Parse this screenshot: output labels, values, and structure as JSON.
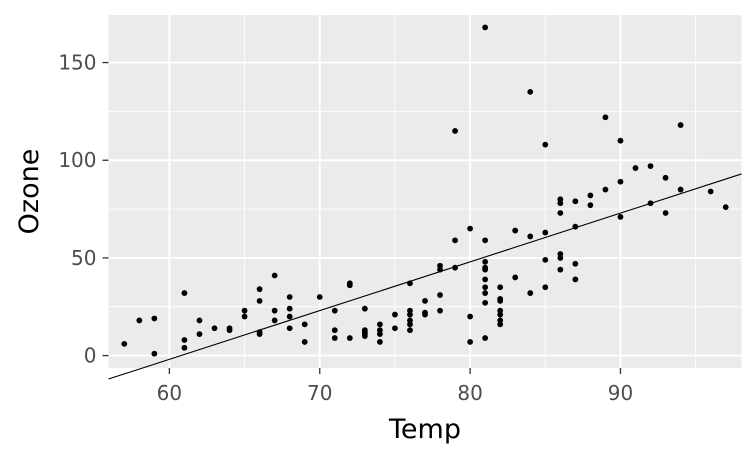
{
  "chart_data": {
    "type": "scatter",
    "title": "",
    "xlabel": "Temp",
    "ylabel": "Ozone",
    "xlim": [
      55.95,
      98.05
    ],
    "ylim": [
      -6.35,
      174.35
    ],
    "x_ticks": [
      60,
      70,
      80,
      90
    ],
    "y_ticks": [
      0,
      50,
      100,
      150
    ],
    "x_minor_ticks": [
      65,
      75,
      85,
      95
    ],
    "y_minor_ticks": [
      25,
      75,
      125
    ],
    "grid": true,
    "legend": "none",
    "colors": {
      "panel": "#ebebeb",
      "grid": "#ffffff",
      "point": "#000000",
      "line": "#000000",
      "tick": "#333333"
    },
    "points": [
      {
        "x": 57,
        "y": 6
      },
      {
        "x": 58,
        "y": 18
      },
      {
        "x": 59,
        "y": 19
      },
      {
        "x": 59,
        "y": 1
      },
      {
        "x": 61,
        "y": 32
      },
      {
        "x": 61,
        "y": 8
      },
      {
        "x": 61,
        "y": 4
      },
      {
        "x": 62,
        "y": 18
      },
      {
        "x": 62,
        "y": 11
      },
      {
        "x": 63,
        "y": 14
      },
      {
        "x": 64,
        "y": 14
      },
      {
        "x": 64,
        "y": 13
      },
      {
        "x": 65,
        "y": 23
      },
      {
        "x": 65,
        "y": 20
      },
      {
        "x": 66,
        "y": 34
      },
      {
        "x": 66,
        "y": 28
      },
      {
        "x": 66,
        "y": 12
      },
      {
        "x": 66,
        "y": 11
      },
      {
        "x": 67,
        "y": 41
      },
      {
        "x": 67,
        "y": 23
      },
      {
        "x": 67,
        "y": 18
      },
      {
        "x": 68,
        "y": 30
      },
      {
        "x": 68,
        "y": 24
      },
      {
        "x": 68,
        "y": 20
      },
      {
        "x": 68,
        "y": 14
      },
      {
        "x": 69,
        "y": 16
      },
      {
        "x": 69,
        "y": 7
      },
      {
        "x": 70,
        "y": 30
      },
      {
        "x": 71,
        "y": 23
      },
      {
        "x": 71,
        "y": 13
      },
      {
        "x": 71,
        "y": 9
      },
      {
        "x": 72,
        "y": 37
      },
      {
        "x": 72,
        "y": 36
      },
      {
        "x": 72,
        "y": 9
      },
      {
        "x": 73,
        "y": 24
      },
      {
        "x": 73,
        "y": 13
      },
      {
        "x": 73,
        "y": 12
      },
      {
        "x": 73,
        "y": 11
      },
      {
        "x": 73,
        "y": 10
      },
      {
        "x": 74,
        "y": 16
      },
      {
        "x": 74,
        "y": 13
      },
      {
        "x": 74,
        "y": 11
      },
      {
        "x": 74,
        "y": 7
      },
      {
        "x": 75,
        "y": 21
      },
      {
        "x": 75,
        "y": 14
      },
      {
        "x": 76,
        "y": 37
      },
      {
        "x": 76,
        "y": 23
      },
      {
        "x": 76,
        "y": 21
      },
      {
        "x": 76,
        "y": 18
      },
      {
        "x": 76,
        "y": 16
      },
      {
        "x": 76,
        "y": 13
      },
      {
        "x": 77,
        "y": 28
      },
      {
        "x": 77,
        "y": 22
      },
      {
        "x": 77,
        "y": 21
      },
      {
        "x": 78,
        "y": 46
      },
      {
        "x": 78,
        "y": 44
      },
      {
        "x": 78,
        "y": 31
      },
      {
        "x": 78,
        "y": 23
      },
      {
        "x": 79,
        "y": 115
      },
      {
        "x": 79,
        "y": 59
      },
      {
        "x": 79,
        "y": 45
      },
      {
        "x": 80,
        "y": 65
      },
      {
        "x": 80,
        "y": 20
      },
      {
        "x": 80,
        "y": 7
      },
      {
        "x": 81,
        "y": 168
      },
      {
        "x": 81,
        "y": 59
      },
      {
        "x": 81,
        "y": 48
      },
      {
        "x": 81,
        "y": 45
      },
      {
        "x": 81,
        "y": 44
      },
      {
        "x": 81,
        "y": 39
      },
      {
        "x": 81,
        "y": 35
      },
      {
        "x": 81,
        "y": 32
      },
      {
        "x": 81,
        "y": 27
      },
      {
        "x": 81,
        "y": 9
      },
      {
        "x": 82,
        "y": 35
      },
      {
        "x": 82,
        "y": 29
      },
      {
        "x": 82,
        "y": 28
      },
      {
        "x": 82,
        "y": 23
      },
      {
        "x": 82,
        "y": 21
      },
      {
        "x": 82,
        "y": 18
      },
      {
        "x": 82,
        "y": 16
      },
      {
        "x": 83,
        "y": 64
      },
      {
        "x": 83,
        "y": 40
      },
      {
        "x": 84,
        "y": 135
      },
      {
        "x": 84,
        "y": 61
      },
      {
        "x": 84,
        "y": 32
      },
      {
        "x": 85,
        "y": 108
      },
      {
        "x": 85,
        "y": 63
      },
      {
        "x": 85,
        "y": 49
      },
      {
        "x": 85,
        "y": 35
      },
      {
        "x": 86,
        "y": 80
      },
      {
        "x": 86,
        "y": 78
      },
      {
        "x": 86,
        "y": 73
      },
      {
        "x": 86,
        "y": 52
      },
      {
        "x": 86,
        "y": 50
      },
      {
        "x": 86,
        "y": 44
      },
      {
        "x": 87,
        "y": 79
      },
      {
        "x": 87,
        "y": 66
      },
      {
        "x": 87,
        "y": 47
      },
      {
        "x": 87,
        "y": 39
      },
      {
        "x": 88,
        "y": 82
      },
      {
        "x": 88,
        "y": 77
      },
      {
        "x": 89,
        "y": 122
      },
      {
        "x": 89,
        "y": 85
      },
      {
        "x": 90,
        "y": 110
      },
      {
        "x": 90,
        "y": 89
      },
      {
        "x": 90,
        "y": 71
      },
      {
        "x": 91,
        "y": 96
      },
      {
        "x": 92,
        "y": 97
      },
      {
        "x": 92,
        "y": 78
      },
      {
        "x": 93,
        "y": 91
      },
      {
        "x": 93,
        "y": 73
      },
      {
        "x": 94,
        "y": 118
      },
      {
        "x": 94,
        "y": 85
      },
      {
        "x": 96,
        "y": 84
      },
      {
        "x": 97,
        "y": 76
      }
    ],
    "fit_line": {
      "x": [
        55.95,
        98.05
      ],
      "y": [
        -12.0,
        93.0
      ]
    }
  }
}
